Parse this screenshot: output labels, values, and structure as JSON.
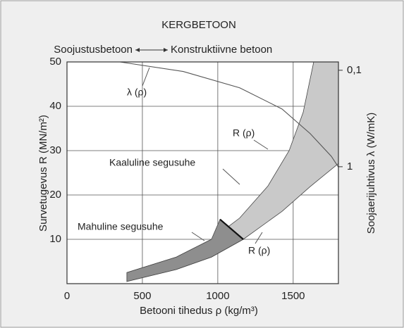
{
  "chart_data": {
    "type": "area",
    "title": "KERGBETOON",
    "subtitle_left": "Soojustusbetoon",
    "subtitle_right": "Konstruktiivne betoon",
    "xlabel": "Betooni tihedus ρ (kg/m³)",
    "ylabel": "Survetugevus R (MN/m²)",
    "y2label": "Soojaerijuhtivus λ (W/mK)",
    "annotations": [
      "λ (ρ)",
      "R (ρ)",
      "Kaaluline segusuhe",
      "Mahuline segusuhe",
      "R (ρ)"
    ],
    "xlim": [
      0,
      1800
    ],
    "xticks": [
      0,
      500,
      1000,
      1500
    ],
    "ylim": [
      0,
      50
    ],
    "yticks": [
      10,
      20,
      30,
      40,
      50
    ],
    "y2lim": [
      16.3,
      0.082
    ],
    "y2log": true,
    "y2ticks": [
      {
        "value": 0.1,
        "label": "0,1"
      },
      1
    ],
    "grid": true,
    "regions": [
      {
        "color": "#c9c9c9",
        "x": [
          397,
          725,
          958,
          1145,
          1332,
          1473,
          1566,
          1636,
          1800,
          1800,
          1613,
          1426,
          1169,
          958,
          725,
          397
        ],
        "y": [
          2.5,
          6,
          10,
          14.8,
          22,
          30,
          38.6,
          50,
          50,
          27.1,
          21.9,
          16.3,
          10,
          6,
          3.2,
          0.5
        ]
      },
      {
        "color": "#8e8e8e",
        "x": [
          397,
          725,
          958,
          1015,
          1169,
          958,
          725,
          397
        ],
        "y": [
          2.5,
          6,
          10,
          14.5,
          10,
          6,
          3.2,
          0.5
        ]
      }
    ],
    "series": [
      {
        "color": "#555555",
        "axis": "y2",
        "x": [
          351,
          771,
          1145,
          1426,
          1613,
          1753,
          1800
        ],
        "values": [
          0.082,
          0.103,
          0.152,
          0.252,
          0.454,
          0.78,
          1.01
        ]
      }
    ],
    "divider": {
      "color": "#111111",
      "x": [
        1015,
        1169
      ],
      "y": [
        14.5,
        10
      ]
    }
  }
}
